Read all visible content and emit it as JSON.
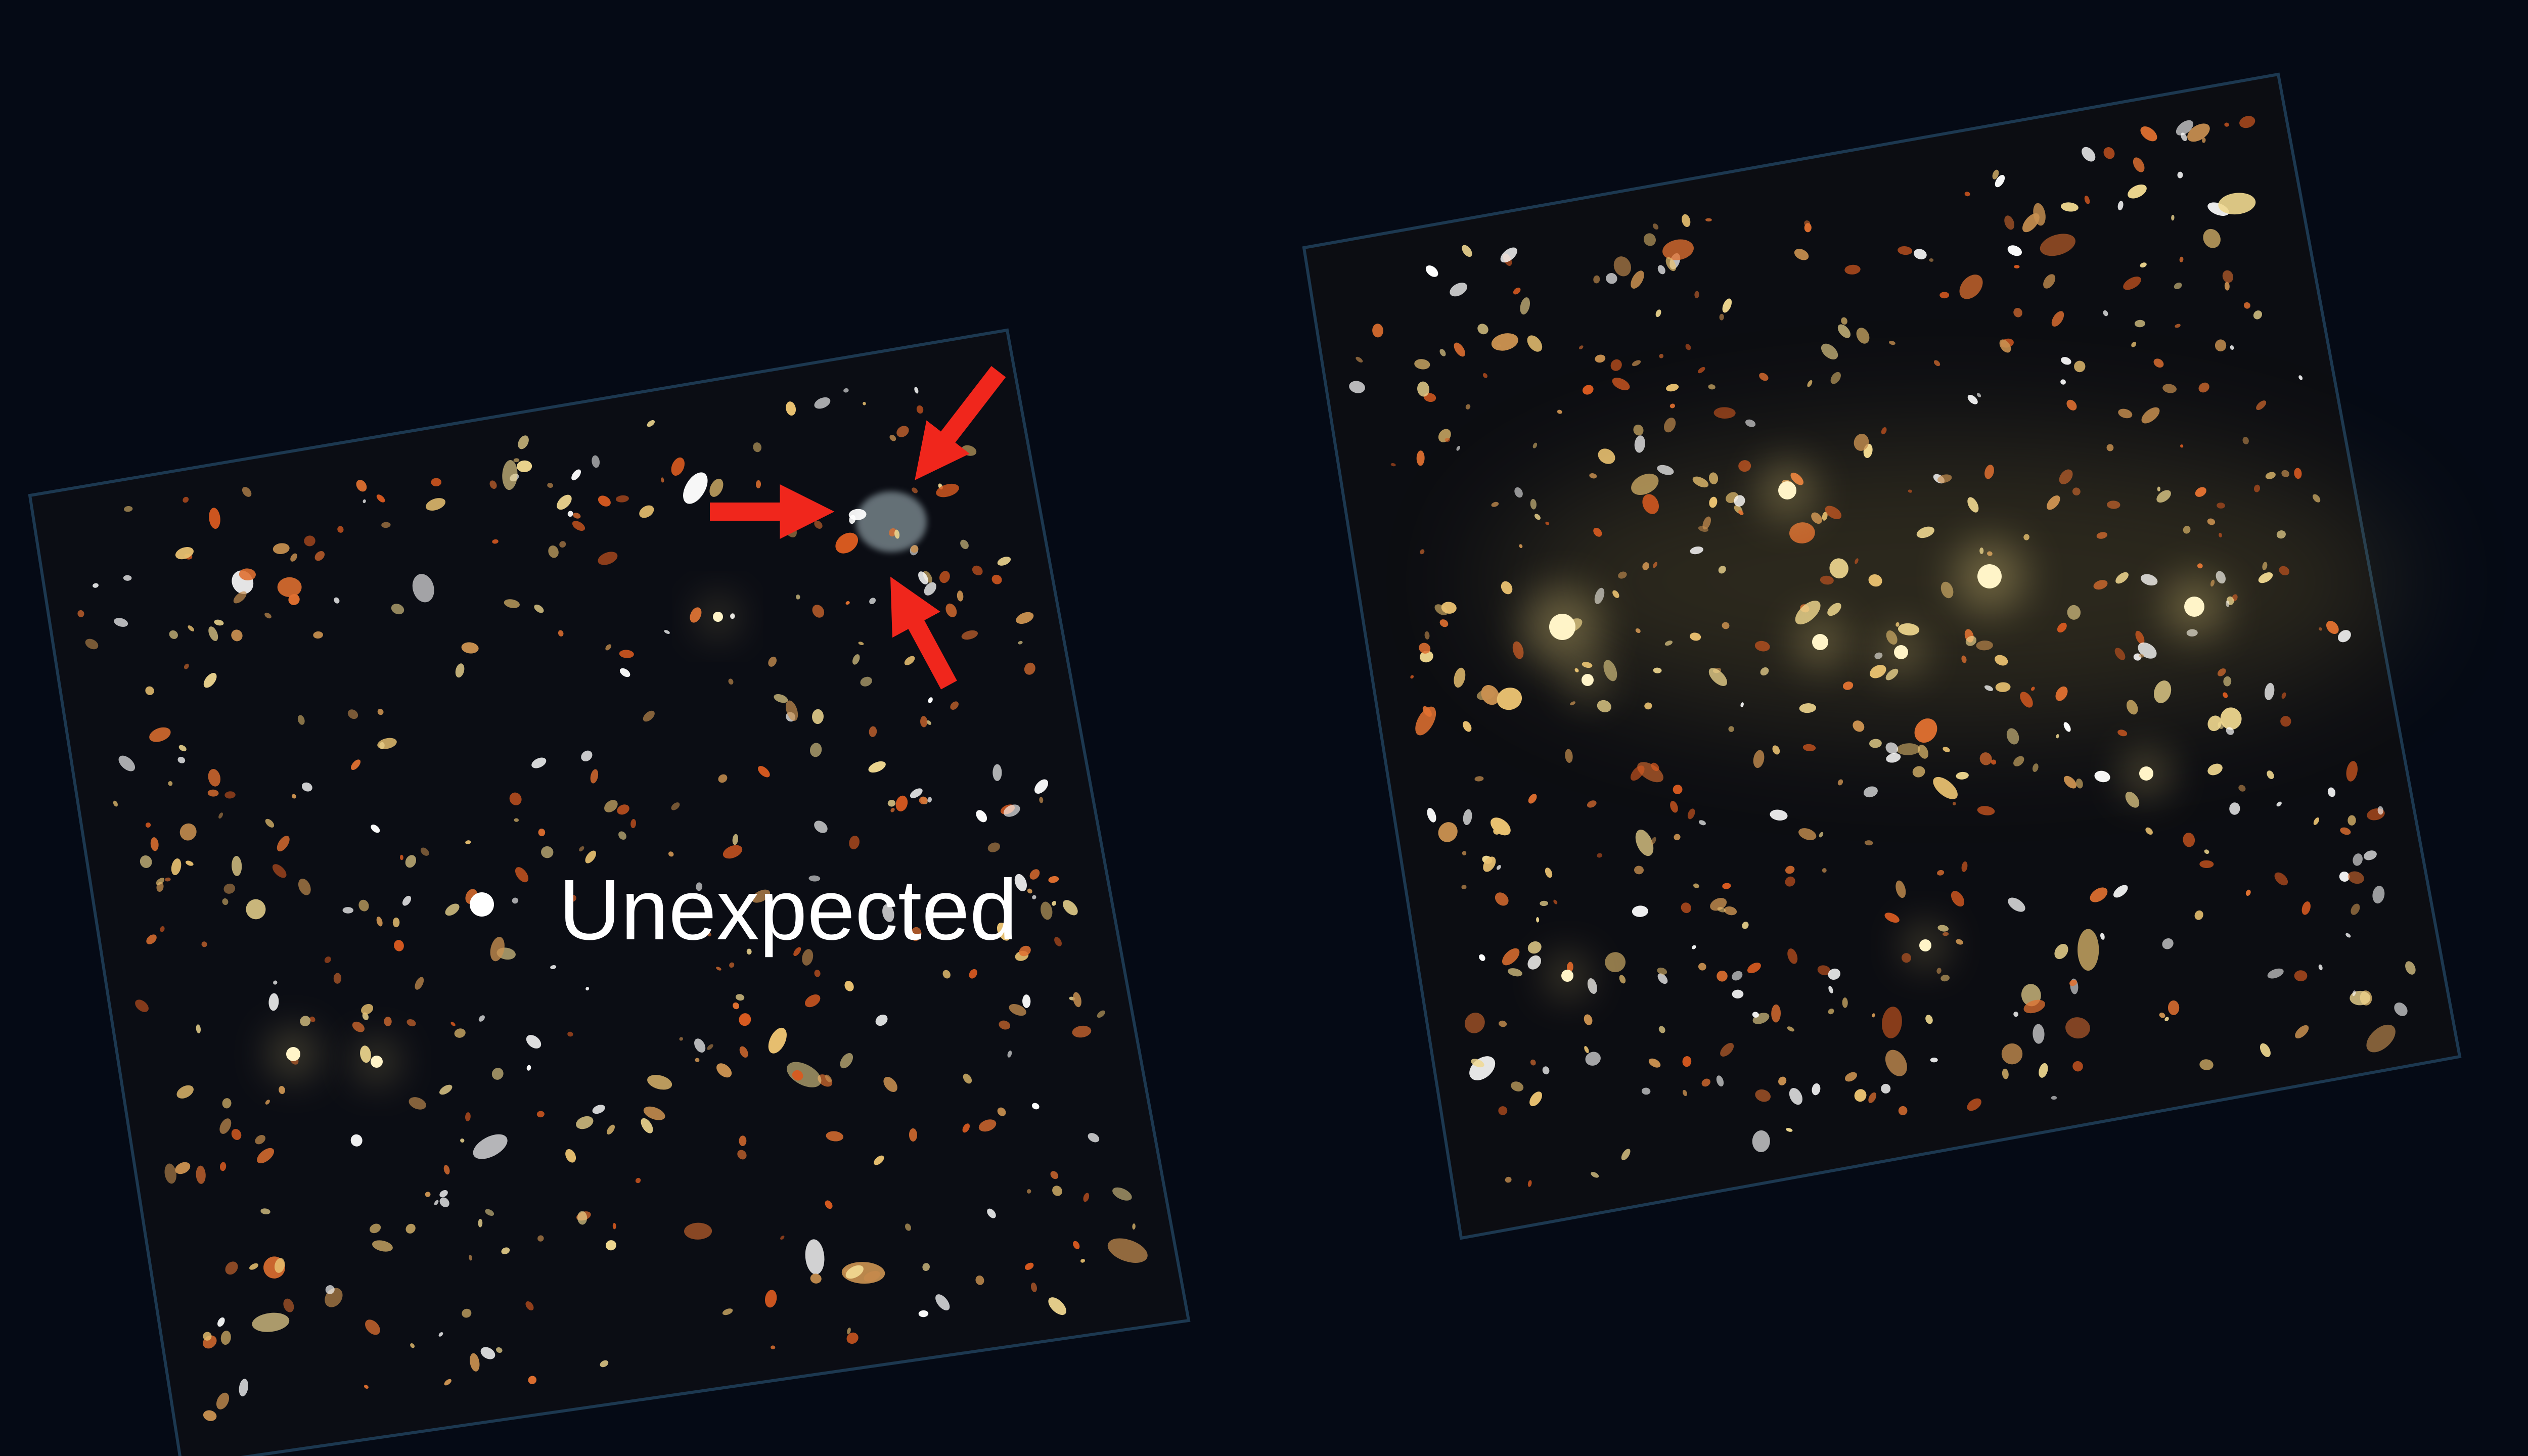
{
  "bullet": {
    "text": "Unexpected"
  }
}
